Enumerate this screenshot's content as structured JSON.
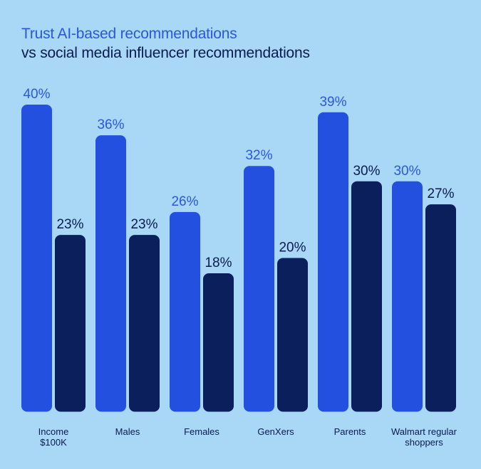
{
  "chart_data": {
    "type": "bar",
    "title": "Trust AI-based recommendations",
    "subtitle": "vs social media influencer recommendations",
    "categories": [
      [
        "Income",
        "$100K"
      ],
      [
        "Males"
      ],
      [
        "Females"
      ],
      [
        "GenXers"
      ],
      [
        "Parents"
      ],
      [
        "Walmart regular",
        "shoppers"
      ]
    ],
    "series": [
      {
        "values": [
          40,
          36,
          26,
          32,
          39,
          30
        ],
        "labels": [
          "40%",
          "36%",
          "26%",
          "32%",
          "39%",
          "30%"
        ],
        "color": "#2450e0",
        "label_color": "#2b57e0"
      },
      {
        "values": [
          23,
          23,
          18,
          20,
          30,
          27
        ],
        "labels": [
          "23%",
          "23%",
          "18%",
          "20%",
          "30%",
          "27%"
        ],
        "color": "#0b1f5c",
        "label_color": "#0a1a52"
      }
    ],
    "ylim": [
      0,
      40
    ]
  }
}
